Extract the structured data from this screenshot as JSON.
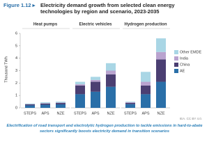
{
  "header": {
    "figure": "Figure 1.12 ▸",
    "title": "Electricity demand growth from selected clean energy technologies by region and scenario, 2023-2035"
  },
  "chart_data": [
    {
      "type": "bar",
      "stacked": true,
      "title": "Heat pumps",
      "y_label": "Thousand TWh",
      "categories": [
        "STEPS",
        "APS",
        "NZE"
      ],
      "ylim": [
        0,
        6
      ],
      "yticks": [
        0,
        1,
        2,
        3,
        4,
        5,
        6
      ],
      "series": [
        {
          "name": "AE",
          "color": "#2a6fa8",
          "values": [
            0.2,
            0.25,
            0.28
          ]
        },
        {
          "name": "China",
          "color": "#4b3f72",
          "values": [
            0.08,
            0.1,
            0.11
          ]
        },
        {
          "name": "India",
          "color": "#b9a3cf",
          "values": [
            0.02,
            0.03,
            0.03
          ]
        },
        {
          "name": "Other EMDE",
          "color": "#a9d6e5",
          "values": [
            0.05,
            0.07,
            0.08
          ]
        }
      ]
    },
    {
      "type": "bar",
      "stacked": true,
      "title": "Electric vehicles",
      "categories": [
        "STEPS",
        "APS",
        "NZE"
      ],
      "ylim": [
        0,
        6
      ],
      "series": [
        {
          "name": "AE",
          "color": "#2a6fa8",
          "values": [
            1.1,
            1.3,
            1.7
          ]
        },
        {
          "name": "China",
          "color": "#4b3f72",
          "values": [
            0.7,
            0.8,
            1.0
          ]
        },
        {
          "name": "India",
          "color": "#b9a3cf",
          "values": [
            0.1,
            0.15,
            0.3
          ]
        },
        {
          "name": "Other EMDE",
          "color": "#a9d6e5",
          "values": [
            0.2,
            0.25,
            0.6
          ]
        }
      ]
    },
    {
      "type": "bar",
      "stacked": true,
      "title": "Hydrogen production",
      "categories": [
        "STEPS",
        "APS",
        "NZE"
      ],
      "ylim": [
        0,
        6
      ],
      "series": [
        {
          "name": "AE",
          "color": "#2a6fa8",
          "values": [
            0.3,
            1.1,
            2.1
          ]
        },
        {
          "name": "China",
          "color": "#4b3f72",
          "values": [
            0.1,
            0.7,
            1.8
          ]
        },
        {
          "name": "India",
          "color": "#b9a3cf",
          "values": [
            0.05,
            0.3,
            0.6
          ]
        },
        {
          "name": "Other EMDE",
          "color": "#a9d6e5",
          "values": [
            0.05,
            0.8,
            1.1
          ]
        }
      ]
    }
  ],
  "source": "IEA. CC BY 4.0.",
  "caption": "Electrification of road transport and electrolytic hydrogen production to tackle emissions in hard-to-abate sectors significantly boosts electricity demand in transition scenarios"
}
